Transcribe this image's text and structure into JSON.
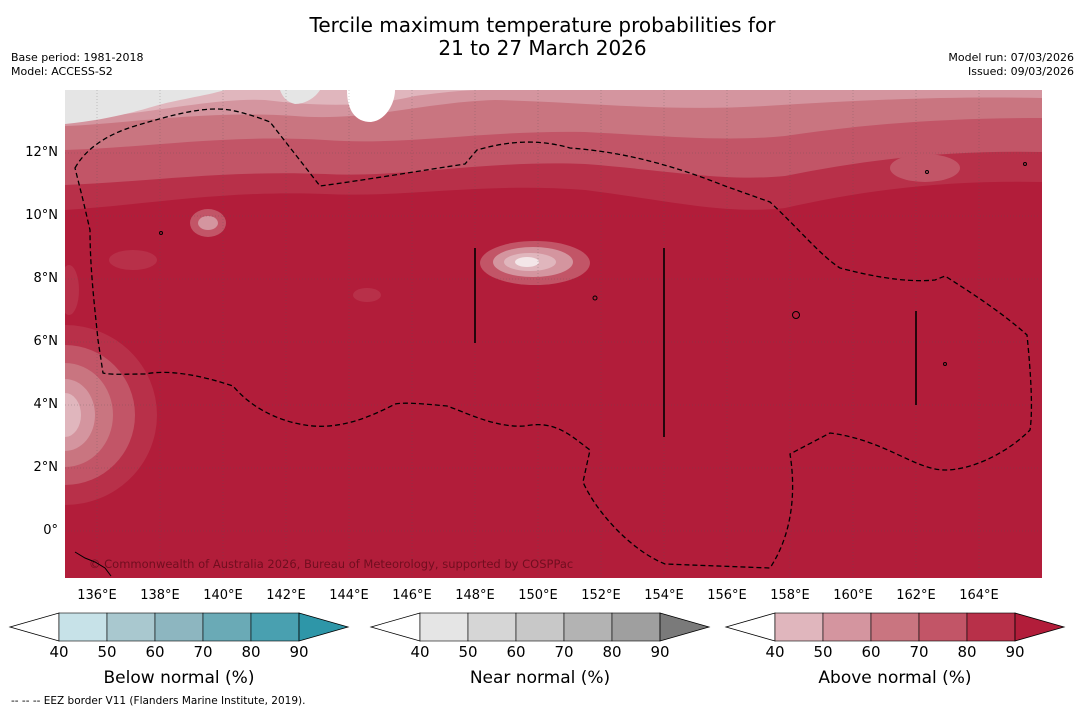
{
  "header": {
    "title_line1": "Tercile maximum temperature probabilities for",
    "title_line2": "21 to 27 March 2026",
    "base_period": "Base period: 1981-2018",
    "model": "Model: ACCESS-S2",
    "model_run": "Model run: 07/03/2026",
    "issued": "Issued: 09/03/2026"
  },
  "map": {
    "lat_labels": [
      "12°N",
      "10°N",
      "8°N",
      "6°N",
      "4°N",
      "2°N",
      "0°"
    ],
    "lon_labels": [
      "136°E",
      "138°E",
      "140°E",
      "142°E",
      "144°E",
      "146°E",
      "148°E",
      "150°E",
      "152°E",
      "154°E",
      "156°E",
      "158°E",
      "160°E",
      "162°E",
      "164°E"
    ],
    "copyright": "© Commonwealth of Australia 2026, Bureau of Meteorology, supported by COSPPac"
  },
  "colorbars": [
    {
      "name": "below",
      "label": "Below normal (%)",
      "ticks": [
        "40",
        "50",
        "60",
        "70",
        "80",
        "90"
      ],
      "colors": [
        "#ffffff",
        "#c7e2e8",
        "#a9c8cf",
        "#8db6c0",
        "#6aaab6",
        "#49a0b0",
        "#2e96a8"
      ]
    },
    {
      "name": "near",
      "label": "Near normal (%)",
      "ticks": [
        "40",
        "50",
        "60",
        "70",
        "80",
        "90"
      ],
      "colors": [
        "#ffffff",
        "#e5e5e5",
        "#d6d6d6",
        "#c8c8c8",
        "#b3b3b3",
        "#9f9f9f",
        "#7a7a7a"
      ]
    },
    {
      "name": "above",
      "label": "Above normal (%)",
      "ticks": [
        "40",
        "50",
        "60",
        "70",
        "80",
        "90"
      ],
      "colors": [
        "#ffffff",
        "#e0b6bd",
        "#d4959f",
        "#c97580",
        "#c25567",
        "#b83049",
        "#b21d3a"
      ]
    }
  ],
  "footer": {
    "eez_note": "--  --  -- EEZ border V11 (Flanders Marine Institute, 2019)."
  }
}
